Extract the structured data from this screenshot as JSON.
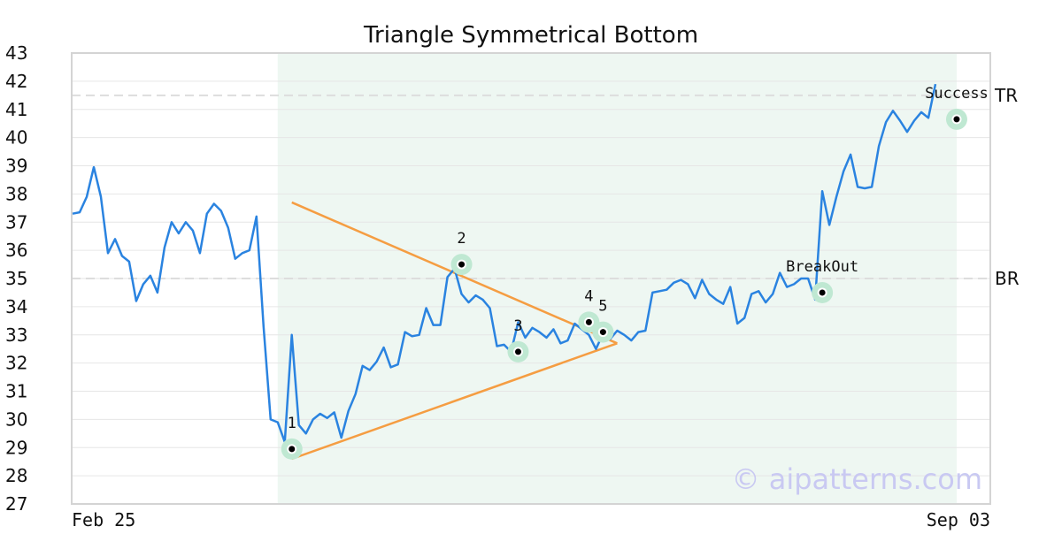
{
  "chart_data": {
    "type": "line",
    "title": "Triangle Symmetrical Bottom",
    "xlabel": "",
    "ylabel": "",
    "ylim": [
      27,
      43
    ],
    "yticks": [
      27,
      28,
      29,
      30,
      31,
      32,
      33,
      34,
      35,
      36,
      37,
      38,
      39,
      40,
      41,
      42,
      43
    ],
    "x_tick_labels": {
      "first": "Feb 25",
      "last": "Sep 03"
    },
    "grid": true,
    "colors": {
      "line": "#2a83e0",
      "triangle": "#f59d42",
      "pattern_shade": "#eef7f2",
      "marker_ring": "#bfe8d2",
      "reference": "#dddddd"
    },
    "series": [
      {
        "values": [
          37.3,
          37.35,
          37.9,
          38.95,
          37.9,
          35.9,
          36.4,
          35.8,
          35.6,
          34.2,
          34.8,
          35.1,
          34.5,
          36.1,
          37.0,
          36.6,
          37.0,
          36.7,
          35.9,
          37.3,
          37.65,
          37.4,
          36.8,
          35.7,
          35.9,
          36.0,
          37.2,
          33.3,
          30.0,
          29.9,
          29.2,
          33.0,
          29.8,
          29.5,
          30.0,
          30.2,
          30.05,
          30.25,
          29.35,
          30.3,
          30.9,
          31.9,
          31.75,
          32.05,
          32.55,
          31.85,
          31.95,
          33.1,
          32.95,
          33.0,
          33.95,
          33.35,
          33.35,
          35.05,
          35.35,
          34.45,
          34.15,
          34.4,
          34.25,
          33.95,
          32.6,
          32.65,
          32.4,
          33.45,
          32.9,
          33.25,
          33.1,
          32.9,
          33.2,
          32.7,
          32.8,
          33.4,
          33.2,
          33.0,
          32.5,
          33.05,
          32.85,
          33.15,
          33.0,
          32.8,
          33.1,
          33.15,
          34.5,
          34.55,
          34.6,
          34.85,
          34.95,
          34.8,
          34.3,
          34.95,
          34.45,
          34.25,
          34.1,
          34.7,
          33.4,
          33.6,
          34.45,
          34.55,
          34.15,
          34.45,
          35.2,
          34.7,
          34.8,
          35.0,
          35.0,
          34.25,
          38.1,
          36.9,
          37.9,
          38.8,
          39.4,
          38.25,
          38.2,
          38.25,
          39.7,
          40.55,
          40.95,
          40.6,
          40.2,
          40.6,
          40.9,
          40.7,
          41.9
        ]
      }
    ],
    "reference_lines": [
      {
        "label": "TR",
        "value": 41.5
      },
      {
        "label": "BR",
        "value": 35.0
      }
    ],
    "pattern_region": {
      "start_index": 29,
      "end_index": 125
    },
    "triangle": {
      "upper": [
        [
          31,
          37.7
        ],
        [
          77,
          32.7
        ]
      ],
      "lower": [
        [
          31,
          28.6
        ],
        [
          77,
          32.7
        ]
      ]
    },
    "points": [
      {
        "label": "1",
        "index": 31,
        "value": 28.95
      },
      {
        "label": "2",
        "index": 55,
        "value": 35.5
      },
      {
        "label": "3",
        "index": 63,
        "value": 32.4
      },
      {
        "label": "4",
        "index": 73,
        "value": 33.45
      },
      {
        "label": "5",
        "index": 75,
        "value": 33.1
      },
      {
        "label": "BreakOut",
        "index": 106,
        "value": 34.5
      },
      {
        "label": "Success",
        "index": 125,
        "value": 40.65
      }
    ],
    "watermark": "© aipatterns.com"
  }
}
